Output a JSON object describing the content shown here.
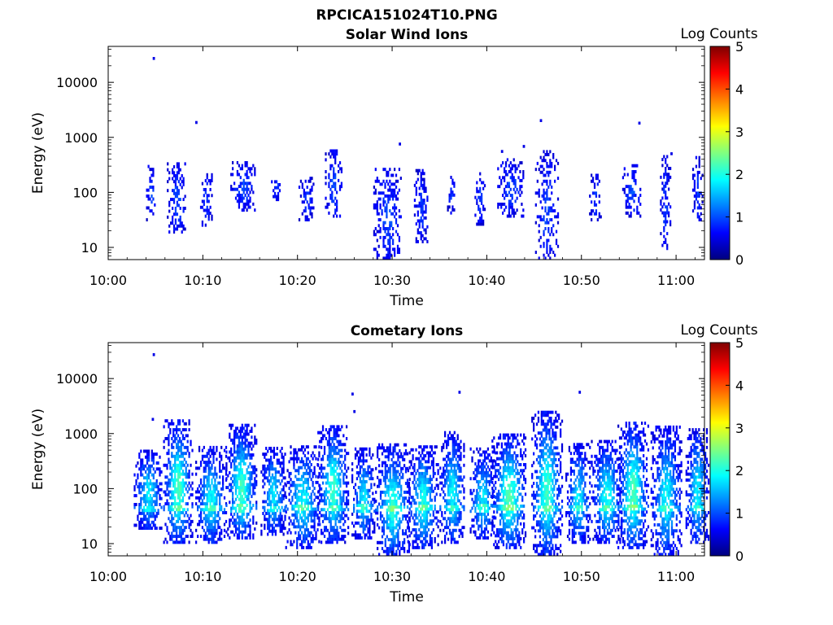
{
  "figure": {
    "title": "RPCICA151024T10.PNG"
  },
  "chart_data": [
    {
      "type": "heatmap",
      "title": "Solar Wind Ions",
      "xlabel": "Time",
      "ylabel": "Energy (eV)",
      "xlim": [
        "10:00",
        "11:03"
      ],
      "x_ticks": [
        "10:00",
        "10:10",
        "10:20",
        "10:30",
        "10:40",
        "10:50",
        "11:00"
      ],
      "yscale": "log",
      "ylim": [
        6,
        45000
      ],
      "y_ticks": [
        "10",
        "100",
        "1000",
        "10000"
      ],
      "colorbar": {
        "label": "Log Counts",
        "range": [
          0,
          5
        ],
        "ticks": [
          "0",
          "1",
          "2",
          "3",
          "4",
          "5"
        ]
      },
      "grid": false,
      "bursts": [
        {
          "t": 4.5,
          "emin": 30,
          "emax": 300,
          "w": 0.5,
          "level": 0.4
        },
        {
          "t": 7.2,
          "emin": 18,
          "emax": 330,
          "w": 1.0,
          "level": 0.5
        },
        {
          "t": 10.3,
          "emin": 24,
          "emax": 220,
          "w": 0.6,
          "level": 0.4
        },
        {
          "t": 14.2,
          "emin": 45,
          "emax": 360,
          "w": 1.3,
          "level": 0.5
        },
        {
          "t": 17.7,
          "emin": 70,
          "emax": 200,
          "w": 0.5,
          "level": 0.4
        },
        {
          "t": 20.9,
          "emin": 30,
          "emax": 180,
          "w": 0.8,
          "level": 0.4
        },
        {
          "t": 23.8,
          "emin": 35,
          "emax": 550,
          "w": 0.9,
          "level": 0.5
        },
        {
          "t": 29.5,
          "emin": 6,
          "emax": 260,
          "w": 1.5,
          "level": 0.5
        },
        {
          "t": 33.0,
          "emin": 12,
          "emax": 240,
          "w": 0.7,
          "level": 0.4
        },
        {
          "t": 36.2,
          "emin": 40,
          "emax": 180,
          "w": 0.4,
          "level": 0.4
        },
        {
          "t": 39.2,
          "emin": 25,
          "emax": 230,
          "w": 0.5,
          "level": 0.4
        },
        {
          "t": 42.5,
          "emin": 35,
          "emax": 400,
          "w": 1.4,
          "level": 0.5
        },
        {
          "t": 46.3,
          "emin": 6,
          "emax": 550,
          "w": 1.2,
          "level": 0.5
        },
        {
          "t": 51.4,
          "emin": 30,
          "emax": 200,
          "w": 0.6,
          "level": 0.4
        },
        {
          "t": 55.3,
          "emin": 35,
          "emax": 300,
          "w": 1.0,
          "level": 0.5
        },
        {
          "t": 58.8,
          "emin": 8,
          "emax": 500,
          "w": 0.5,
          "level": 0.4
        },
        {
          "t": 62.2,
          "emin": 30,
          "emax": 450,
          "w": 0.5,
          "level": 0.4
        }
      ],
      "outliers": [
        {
          "t": 4.7,
          "e": 27000
        },
        {
          "t": 9.2,
          "e": 1850
        },
        {
          "t": 45.6,
          "e": 2000
        },
        {
          "t": 56.0,
          "e": 1800
        },
        {
          "t": 30.7,
          "e": 750
        },
        {
          "t": 59.4,
          "e": 500
        },
        {
          "t": 41.5,
          "e": 550
        },
        {
          "t": 43.8,
          "e": 680
        }
      ]
    },
    {
      "type": "heatmap",
      "title": "Cometary Ions",
      "xlabel": "Time",
      "ylabel": "Energy (eV)",
      "xlim": [
        "10:00",
        "11:03"
      ],
      "x_ticks": [
        "10:00",
        "10:10",
        "10:20",
        "10:30",
        "10:40",
        "10:50",
        "11:00"
      ],
      "yscale": "log",
      "ylim": [
        6,
        45000
      ],
      "y_ticks": [
        "10",
        "100",
        "1000",
        "10000"
      ],
      "colorbar": {
        "label": "Log Counts",
        "range": [
          0,
          5
        ],
        "ticks": [
          "0",
          "1",
          "2",
          "3",
          "4",
          "5"
        ]
      },
      "grid": false,
      "bursts": [
        {
          "t": 4.2,
          "emin": 18,
          "emax": 500,
          "w": 1.5,
          "level": 1.3
        },
        {
          "t": 7.3,
          "emin": 10,
          "emax": 1700,
          "w": 1.5,
          "level": 1.8
        },
        {
          "t": 10.8,
          "emin": 10,
          "emax": 550,
          "w": 1.6,
          "level": 1.4
        },
        {
          "t": 14.0,
          "emin": 12,
          "emax": 1400,
          "w": 1.6,
          "level": 1.7
        },
        {
          "t": 17.4,
          "emin": 14,
          "emax": 550,
          "w": 1.3,
          "level": 1.3
        },
        {
          "t": 20.5,
          "emin": 8,
          "emax": 600,
          "w": 1.8,
          "level": 1.4
        },
        {
          "t": 23.7,
          "emin": 10,
          "emax": 1400,
          "w": 1.6,
          "level": 1.7
        },
        {
          "t": 26.9,
          "emin": 12,
          "emax": 500,
          "w": 1.2,
          "level": 1.3
        },
        {
          "t": 30.0,
          "emin": 6,
          "emax": 600,
          "w": 1.8,
          "level": 1.6
        },
        {
          "t": 33.2,
          "emin": 8,
          "emax": 600,
          "w": 1.6,
          "level": 1.5
        },
        {
          "t": 36.3,
          "emin": 10,
          "emax": 1000,
          "w": 1.3,
          "level": 1.4
        },
        {
          "t": 39.5,
          "emin": 12,
          "emax": 500,
          "w": 1.3,
          "level": 1.3
        },
        {
          "t": 42.3,
          "emin": 8,
          "emax": 1000,
          "w": 1.8,
          "level": 1.8
        },
        {
          "t": 46.3,
          "emin": 6,
          "emax": 2500,
          "w": 1.6,
          "level": 1.7
        },
        {
          "t": 49.6,
          "emin": 10,
          "emax": 600,
          "w": 1.3,
          "level": 1.3
        },
        {
          "t": 52.6,
          "emin": 10,
          "emax": 700,
          "w": 1.6,
          "level": 1.5
        },
        {
          "t": 55.4,
          "emin": 8,
          "emax": 1600,
          "w": 1.6,
          "level": 1.8
        },
        {
          "t": 58.9,
          "emin": 6,
          "emax": 1300,
          "w": 1.6,
          "level": 1.4
        },
        {
          "t": 62.2,
          "emin": 10,
          "emax": 1200,
          "w": 1.2,
          "level": 1.4
        }
      ],
      "outliers": [
        {
          "t": 4.7,
          "e": 27000
        },
        {
          "t": 25.7,
          "e": 5200
        },
        {
          "t": 37.0,
          "e": 5600
        },
        {
          "t": 49.7,
          "e": 5600
        },
        {
          "t": 4.6,
          "e": 1800
        },
        {
          "t": 25.9,
          "e": 2500
        }
      ]
    }
  ]
}
